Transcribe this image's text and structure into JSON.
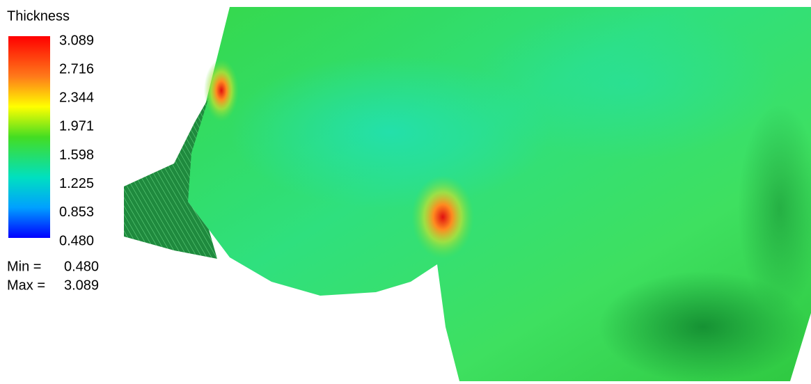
{
  "legend": {
    "title": "Thickness",
    "labels": [
      "3.089",
      "2.716",
      "2.344",
      "1.971",
      "1.598",
      "1.225",
      "0.853",
      "0.480"
    ],
    "stats": [
      {
        "label": "Min =",
        "value": "0.480"
      },
      {
        "label": "Max =",
        "value": "3.089"
      }
    ]
  }
}
